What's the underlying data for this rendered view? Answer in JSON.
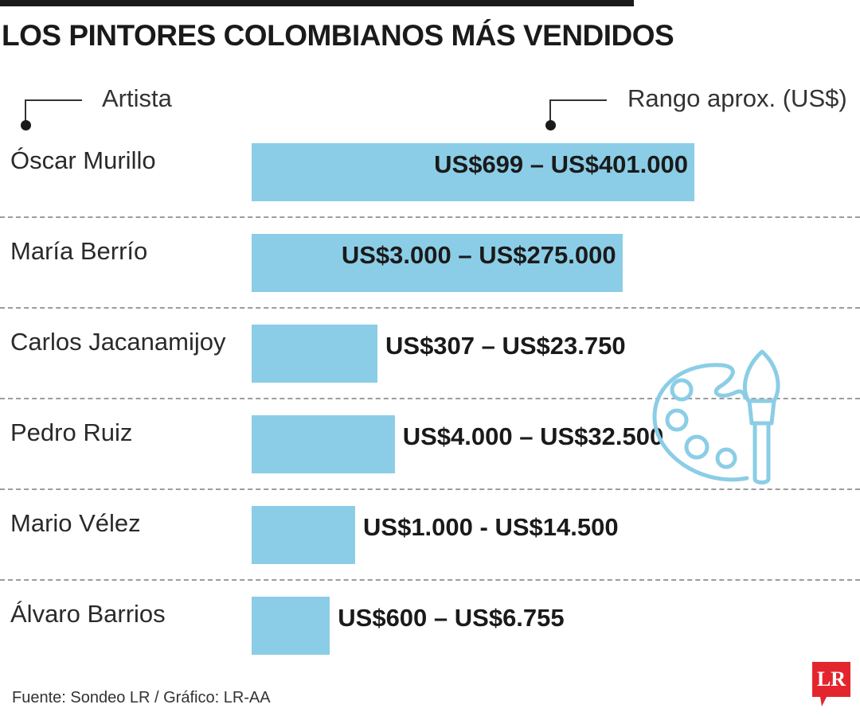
{
  "title": "LOS PINTORES COLOMBIANOS MÁS VENDIDOS",
  "column_headers": {
    "artist": "Artista",
    "range": "Rango aprox. (US$)"
  },
  "source": "Fuente: Sondeo LR / Gráfico: LR-AA",
  "logo": {
    "text": "LR",
    "color": "#e3262e"
  },
  "colors": {
    "bar": "#8bcde6",
    "icon": "#8bcde6"
  },
  "icons": [
    "palette-icon",
    "paintbrush-icon"
  ],
  "chart_data": {
    "type": "bar",
    "orientation": "horizontal",
    "categories": [
      "Óscar Murillo",
      "María Berrío",
      "Carlos Jacanamijoy",
      "Pedro Ruiz",
      "Mario Vélez",
      "Álvaro Barrios"
    ],
    "labels": [
      "US$699 – US$401.000",
      "US$3.000 – US$275.000",
      "US$307 – US$23.750",
      "US$4.000 – US$32.500",
      "US$1.000 - US$14.500",
      "US$600 – US$6.755"
    ],
    "ranges": [
      [
        699,
        401000
      ],
      [
        3000,
        275000
      ],
      [
        307,
        23750
      ],
      [
        4000,
        32500
      ],
      [
        1000,
        14500
      ],
      [
        600,
        6755
      ]
    ],
    "values": [
      401000,
      275000,
      23750,
      32500,
      14500,
      6755
    ],
    "grid": false,
    "legend": "none"
  }
}
